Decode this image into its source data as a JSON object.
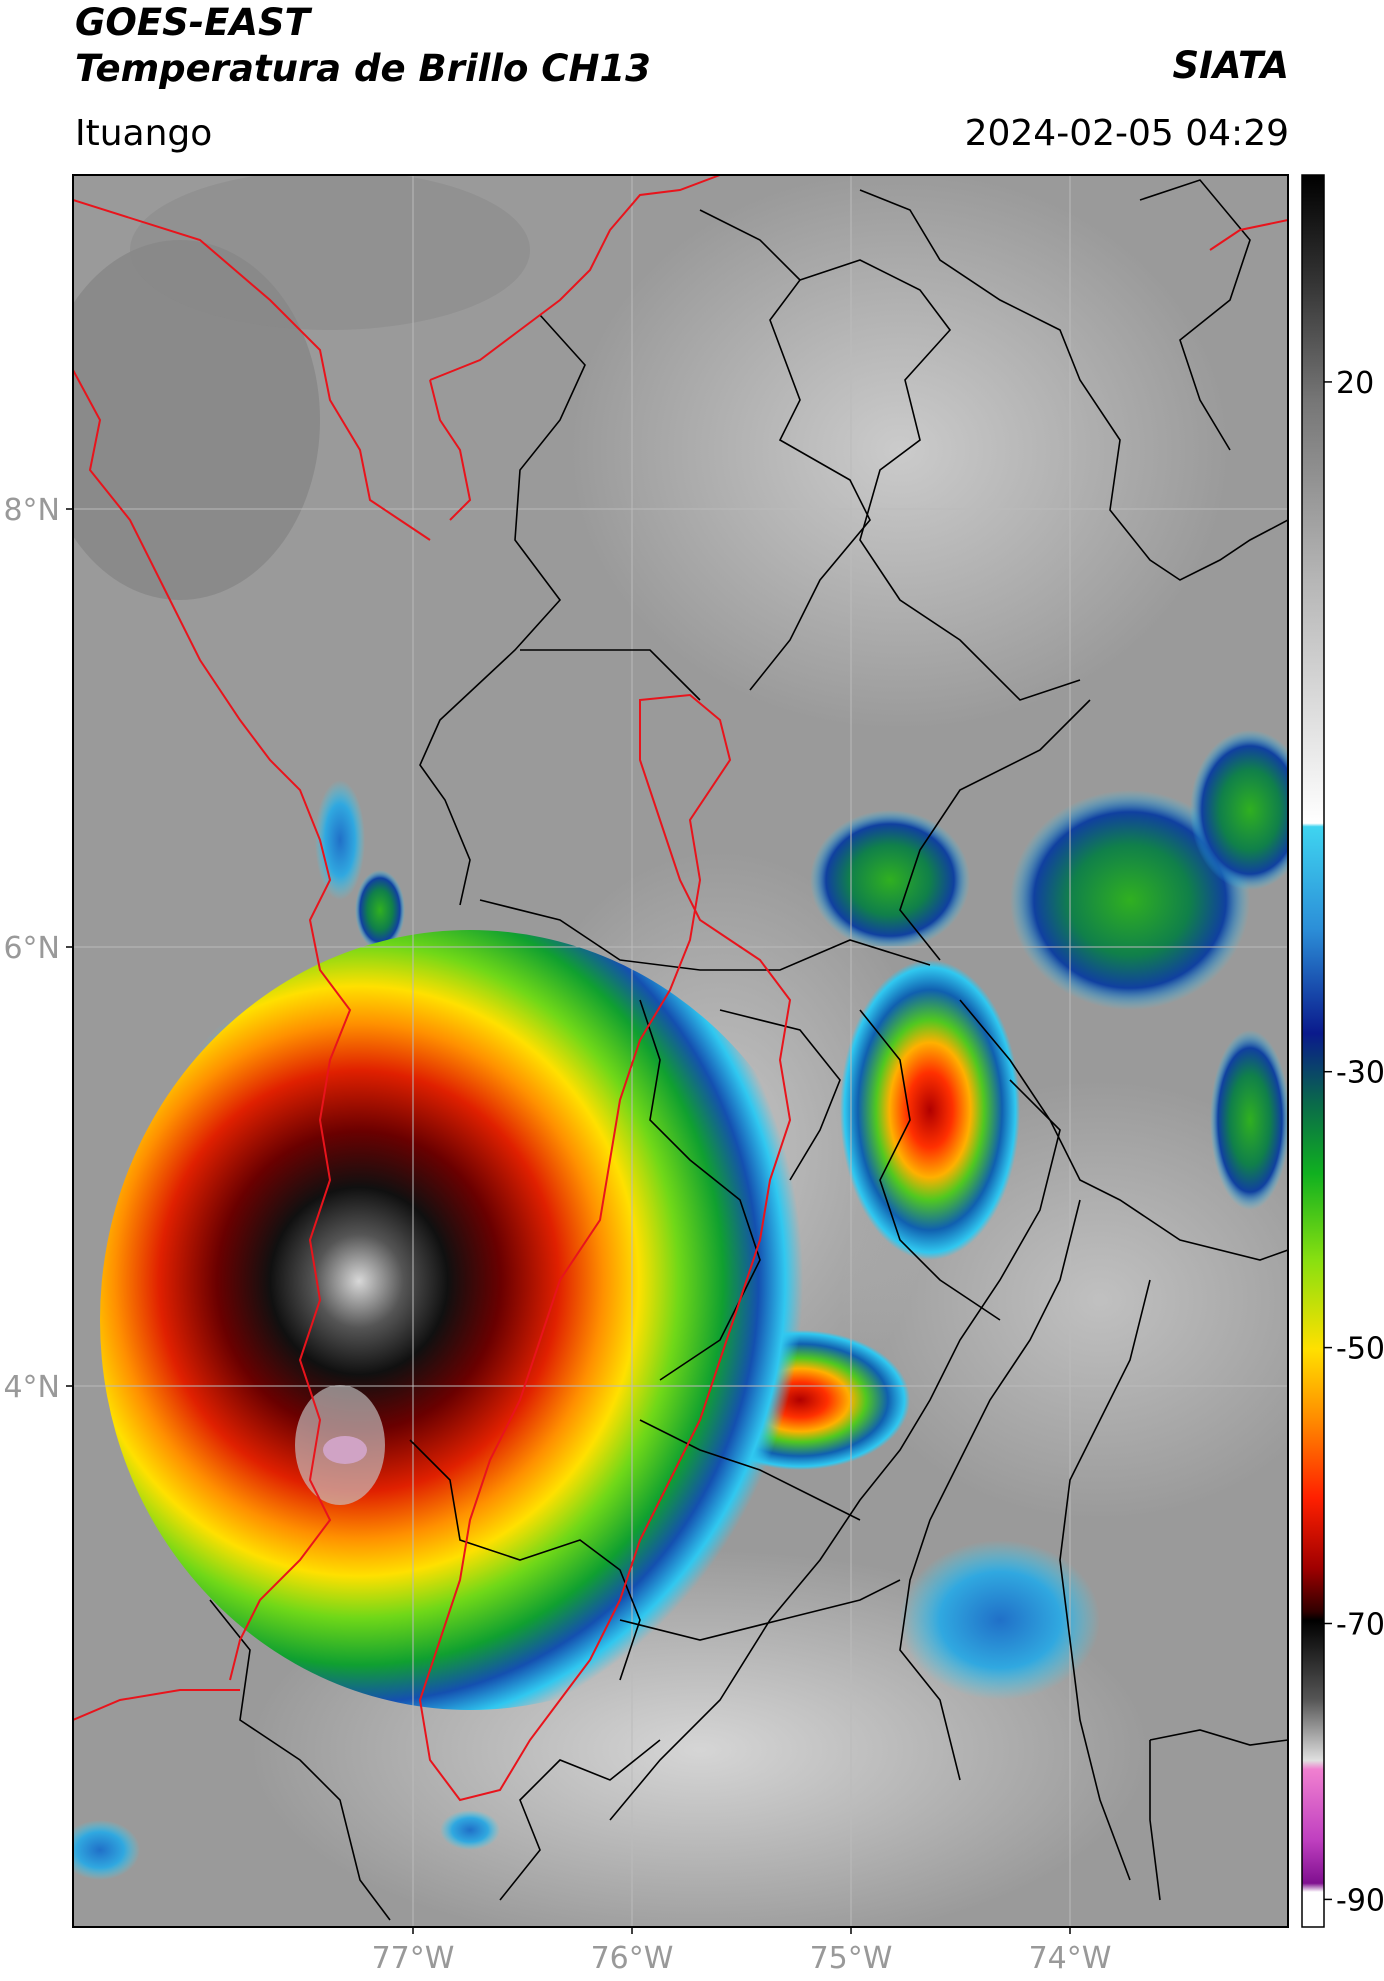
{
  "header": {
    "satellite": "GOES-EAST",
    "product": "Temperatura de Brillo CH13",
    "organization": "SIATA",
    "location": "Ituango",
    "timestamp": "2024-02-05 04:29"
  },
  "map": {
    "lon_range": [
      -78.55,
      -73.0
    ],
    "lat_range": [
      2.0,
      9.55
    ],
    "lat_ticks": [
      {
        "value": 8,
        "label": "8°N"
      },
      {
        "value": 6,
        "label": "6°N"
      },
      {
        "value": 4,
        "label": "4°N"
      }
    ],
    "lon_ticks": [
      {
        "value": -77,
        "label": "77°W"
      },
      {
        "value": -76,
        "label": "76°W"
      },
      {
        "value": -75,
        "label": "75°W"
      },
      {
        "value": -74,
        "label": "74°W"
      }
    ],
    "gridlines": true,
    "colors": {
      "background_gray": "#9a9a9a",
      "boundaries": "#000000",
      "basin_outline": "#e8141c",
      "gridline": "#bbbbbb"
    }
  },
  "colorbar": {
    "orientation": "vertical",
    "range": [
      -92,
      35
    ],
    "tick_labels": [
      {
        "value": 20,
        "label": "20"
      },
      {
        "value": -30,
        "label": "-30"
      },
      {
        "value": -50,
        "label": "-50"
      },
      {
        "value": -70,
        "label": "-70"
      },
      {
        "value": -90,
        "label": "-90"
      }
    ],
    "stops": [
      {
        "value": 35,
        "color": "#000000"
      },
      {
        "value": 27,
        "color": "#333333"
      },
      {
        "value": 18,
        "color": "#777777"
      },
      {
        "value": 5,
        "color": "#b5b5b5"
      },
      {
        "value": -12,
        "color": "#ffffff"
      },
      {
        "value": -13,
        "color": "#3fd4f0"
      },
      {
        "value": -20,
        "color": "#2c8fd8"
      },
      {
        "value": -28,
        "color": "#0a1a8c"
      },
      {
        "value": -33,
        "color": "#0a6a4a"
      },
      {
        "value": -38,
        "color": "#10b020"
      },
      {
        "value": -44,
        "color": "#8ae010"
      },
      {
        "value": -50,
        "color": "#ffe000"
      },
      {
        "value": -55,
        "color": "#ff8c00"
      },
      {
        "value": -61,
        "color": "#ff2000"
      },
      {
        "value": -66,
        "color": "#a00000"
      },
      {
        "value": -69,
        "color": "#300000"
      },
      {
        "value": -70,
        "color": "#000000"
      },
      {
        "value": -75,
        "color": "#555555"
      },
      {
        "value": -80,
        "color": "#e0e0e0"
      },
      {
        "value": -81,
        "color": "#f080d0"
      },
      {
        "value": -86,
        "color": "#c040c0"
      },
      {
        "value": -89,
        "color": "#801090"
      },
      {
        "value": -90,
        "color": "#ffffff"
      }
    ]
  }
}
